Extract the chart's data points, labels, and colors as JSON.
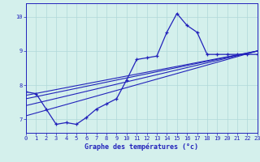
{
  "xlabel": "Graphe des températures (°c)",
  "x_min": 0,
  "x_max": 23,
  "y_min": 6.6,
  "y_max": 10.4,
  "yticks": [
    7,
    8,
    9,
    10
  ],
  "xticks": [
    0,
    1,
    2,
    3,
    4,
    5,
    6,
    7,
    8,
    9,
    10,
    11,
    12,
    13,
    14,
    15,
    16,
    17,
    18,
    19,
    20,
    21,
    22,
    23
  ],
  "bg_color": "#d4f0ec",
  "line_color": "#2222bb",
  "grid_color": "#b0d8d8",
  "line1_x": [
    0,
    1,
    2,
    3,
    4,
    5,
    6,
    7,
    8,
    9,
    10,
    11,
    12,
    13,
    14,
    15,
    16,
    17,
    18,
    19,
    20,
    21,
    22,
    23
  ],
  "line1_y": [
    7.8,
    7.75,
    7.3,
    6.85,
    6.9,
    6.85,
    7.05,
    7.3,
    7.45,
    7.6,
    8.15,
    8.75,
    8.8,
    8.85,
    9.55,
    10.1,
    9.75,
    9.55,
    8.9,
    8.9,
    8.9,
    8.9,
    8.9,
    8.9
  ],
  "line2_x": [
    0,
    23
  ],
  "line2_y": [
    7.7,
    9.0
  ],
  "line3_x": [
    0,
    23
  ],
  "line3_y": [
    7.6,
    9.0
  ],
  "line4_x": [
    0,
    23
  ],
  "line4_y": [
    7.4,
    9.0
  ],
  "line5_x": [
    0,
    23
  ],
  "line5_y": [
    7.1,
    9.0
  ]
}
